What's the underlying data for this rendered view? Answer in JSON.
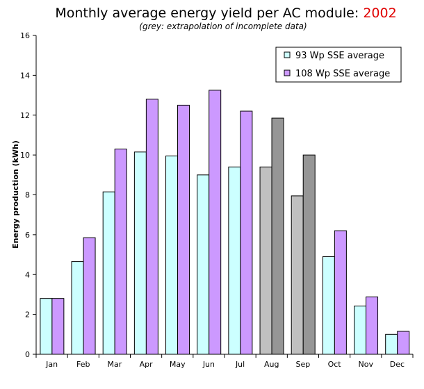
{
  "title": {
    "main": "Monthly average energy yield per AC module: ",
    "year": "2002"
  },
  "subtitle": "(grey: extrapolation of incomplete data)",
  "colors": {
    "series1": "#ccffff",
    "series2": "#cc99ff",
    "series1_grey": "#c0c0c0",
    "series2_grey": "#969696",
    "title_year": "#e00000"
  },
  "chart_data": {
    "type": "bar",
    "title": "Monthly average energy yield per AC module: 2002",
    "subtitle": "(grey: extrapolation of incomplete data)",
    "xlabel": "",
    "ylabel": "Energy production (kWh)",
    "ylim": [
      0,
      16
    ],
    "yticks": [
      "0",
      "2",
      "4",
      "6",
      "8",
      "10",
      "12",
      "14",
      "16"
    ],
    "grid": false,
    "legend_position": "top-right",
    "categories": [
      "Jan",
      "Feb",
      "Mar",
      "Apr",
      "May",
      "Jun",
      "Jul",
      "Aug",
      "Sep",
      "Oct",
      "Nov",
      "Dec"
    ],
    "series": [
      {
        "name": "93 Wp SSE average",
        "values": [
          2.8,
          4.65,
          8.15,
          10.15,
          9.95,
          9.0,
          9.4,
          9.4,
          7.95,
          4.9,
          2.42,
          1.0
        ]
      },
      {
        "name": "108 Wp SSE average",
        "values": [
          2.8,
          5.85,
          10.3,
          12.8,
          12.5,
          13.25,
          12.2,
          11.85,
          10.0,
          6.2,
          2.88,
          1.15
        ]
      }
    ],
    "extrapolated_categories": [
      "Aug",
      "Sep"
    ]
  }
}
